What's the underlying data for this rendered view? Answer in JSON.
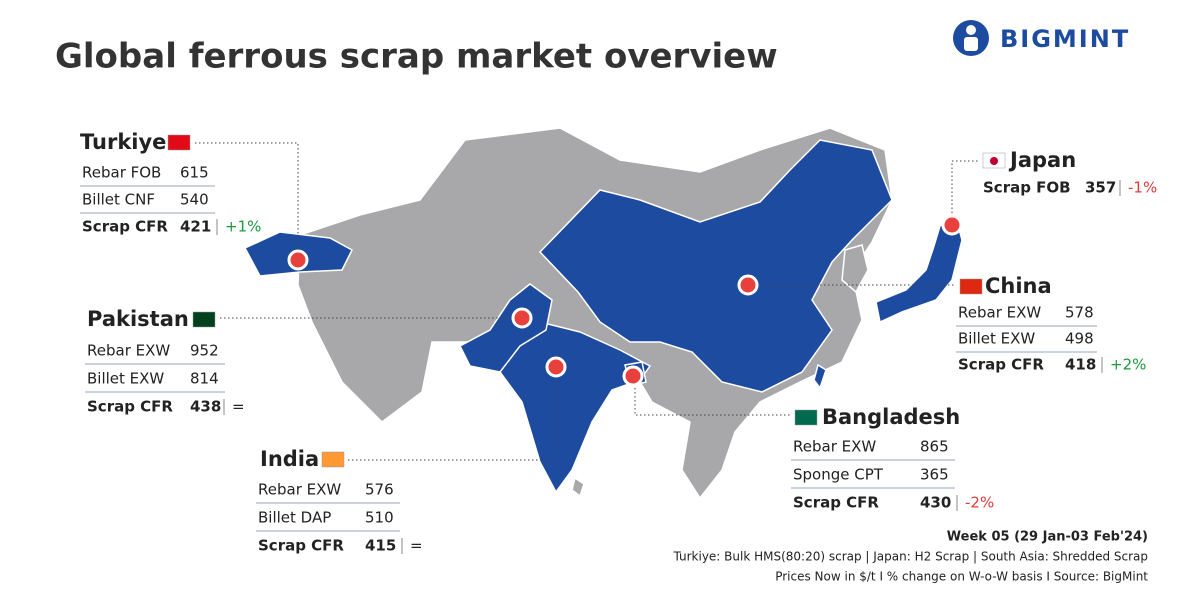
{
  "header": {
    "title": "Global ferrous scrap market overview",
    "brand": "BIGMINT"
  },
  "countries": [
    {
      "name": "Turkiye",
      "rows": [
        {
          "label": "Rebar FOB",
          "value": 615
        },
        {
          "label": "Billet CNF",
          "value": 540
        },
        {
          "label": "Scrap CFR",
          "value": 421,
          "change": "+1%"
        }
      ]
    },
    {
      "name": "Pakistan",
      "rows": [
        {
          "label": "Rebar EXW",
          "value": 952
        },
        {
          "label": "Billet EXW",
          "value": 814
        },
        {
          "label": "Scrap CFR",
          "value": 438,
          "change": "="
        }
      ]
    },
    {
      "name": "India",
      "rows": [
        {
          "label": "Rebar EXW",
          "value": 576
        },
        {
          "label": "Billet DAP",
          "value": 510
        },
        {
          "label": "Scrap CFR",
          "value": 415,
          "change": "="
        }
      ]
    },
    {
      "name": "Bangladesh",
      "rows": [
        {
          "label": "Rebar EXW",
          "value": 865
        },
        {
          "label": "Sponge CPT",
          "value": 365
        },
        {
          "label": "Scrap CFR",
          "value": 430,
          "change": "-2%"
        }
      ]
    },
    {
      "name": "China",
      "rows": [
        {
          "label": "Rebar EXW",
          "value": 578
        },
        {
          "label": "Billet EXW",
          "value": 498
        },
        {
          "label": "Scrap CFR",
          "value": 418,
          "change": "+2%"
        }
      ]
    },
    {
      "name": "Japan",
      "rows": [
        {
          "label": "Scrap FOB",
          "value": 357,
          "change": "-1%"
        }
      ]
    }
  ],
  "footer": {
    "week": "Week 05 (29 Jan-03 Feb'24)",
    "note": "Turkiye: Bulk HMS(80:20) scrap | Japan: H2 Scrap | South Asia: Shredded Scrap",
    "source": "Prices Now in $/t  I  % change on W-o-W basis  I  Source: BigMint"
  }
}
